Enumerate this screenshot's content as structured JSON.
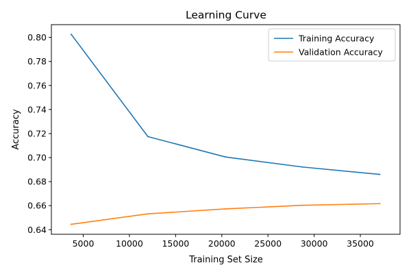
{
  "chart_data": {
    "type": "line",
    "title": "Learning Curve",
    "xlabel": "Training Set Size",
    "ylabel": "Accuracy",
    "xlim": [
      1550,
      39300
    ],
    "ylim": [
      0.6362,
      0.8106
    ],
    "x_ticks": [
      5000,
      10000,
      15000,
      20000,
      25000,
      30000,
      35000
    ],
    "y_ticks": [
      0.64,
      0.66,
      0.68,
      0.7,
      0.72,
      0.74,
      0.76,
      0.78,
      0.8
    ],
    "x_tick_labels": [
      "5000",
      "10000",
      "15000",
      "20000",
      "25000",
      "30000",
      "35000"
    ],
    "y_tick_labels": [
      "0.64",
      "0.66",
      "0.68",
      "0.70",
      "0.72",
      "0.74",
      "0.76",
      "0.78",
      "0.80"
    ],
    "grid": false,
    "legend_position": "top-right",
    "x": [
      3700,
      12000,
      20400,
      28700,
      37100
    ],
    "series": [
      {
        "name": "Training Accuracy",
        "color": "#1f77b4",
        "values": [
          0.8025,
          0.7175,
          0.7005,
          0.6922,
          0.686
        ]
      },
      {
        "name": "Validation Accuracy",
        "color": "#ff7f0e",
        "values": [
          0.6445,
          0.6532,
          0.6573,
          0.6603,
          0.6617
        ]
      }
    ]
  }
}
